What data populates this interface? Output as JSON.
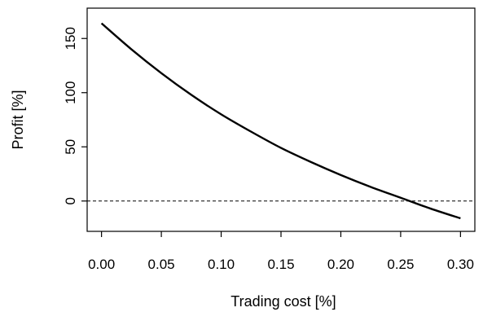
{
  "chart_data": {
    "type": "line",
    "xlabel": "Trading cost [%]",
    "ylabel": "Profit [%]",
    "xlim": [
      -0.012,
      0.312
    ],
    "ylim": [
      -28,
      178
    ],
    "xticks": [
      0.0,
      0.05,
      0.1,
      0.15,
      0.2,
      0.25,
      0.3
    ],
    "xtick_labels": [
      "0.00",
      "0.05",
      "0.10",
      "0.15",
      "0.20",
      "0.25",
      "0.30"
    ],
    "yticks": [
      0,
      50,
      100,
      150
    ],
    "ytick_labels": [
      "0",
      "50",
      "100",
      "150"
    ],
    "grid": false,
    "series": [
      {
        "x": [
          0.0,
          0.025,
          0.05,
          0.075,
          0.1,
          0.125,
          0.15,
          0.175,
          0.2,
          0.225,
          0.25,
          0.275,
          0.3
        ],
        "y": [
          164,
          140,
          118,
          98,
          80,
          64,
          49,
          36,
          24,
          13,
          3,
          -7,
          -16
        ],
        "color": "#000000",
        "style": "solid"
      }
    ],
    "reference_lines": [
      {
        "axis": "y",
        "value": 0,
        "style": "dashed",
        "color": "#000000"
      }
    ]
  }
}
